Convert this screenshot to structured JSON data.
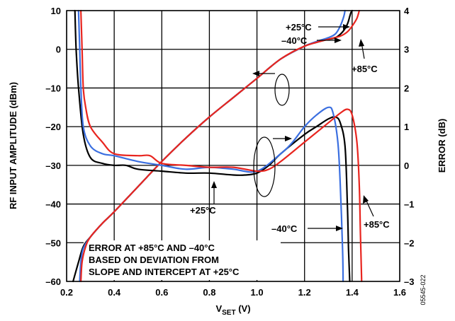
{
  "chart_data": {
    "type": "line",
    "xlabel": {
      "main": "V",
      "sub": "SET",
      "unit": " (V)"
    },
    "ylabel": "RF INPUT AMPLITUDE (dBm)",
    "y2label": "ERROR (dB)",
    "xlim": [
      0.2,
      1.6
    ],
    "ylim": [
      -60,
      10
    ],
    "y2lim": [
      -3,
      4
    ],
    "grid": true,
    "x_ticks": [
      "0.2",
      "0.4",
      "0.6",
      "0.8",
      "1.0",
      "1.2",
      "1.4",
      "1.6"
    ],
    "y_ticks": [
      "10",
      "0",
      "–10",
      "–20",
      "–30",
      "–40",
      "–50",
      "–60"
    ],
    "y2_ticks": [
      "4",
      "3",
      "2",
      "1",
      "0",
      "–1",
      "–2",
      "–3"
    ],
    "series": [
      {
        "name": "+25°C",
        "color": "#000000",
        "role": "amplitude",
        "x": [
          0.227,
          0.25,
          0.27,
          0.3,
          0.35,
          0.4,
          0.5,
          0.6,
          0.7,
          0.8,
          0.9,
          1.0,
          1.1,
          1.2,
          1.25,
          1.3,
          1.33,
          1.36,
          1.38,
          1.39,
          1.395,
          1.4
        ],
        "y": [
          -60,
          -55,
          -51,
          -48.5,
          -45,
          -42,
          -35.5,
          -29,
          -23,
          -17.5,
          -12.5,
          -7.5,
          -2.5,
          0.8,
          1.8,
          2.6,
          3.0,
          4.5,
          6.5,
          8.5,
          9.5,
          10
        ]
      },
      {
        "name": "–40°C",
        "color": "#3b6fe0",
        "role": "amplitude",
        "x": [
          0.255,
          0.26,
          0.27,
          0.3,
          0.35,
          0.4,
          0.5,
          0.6,
          0.7,
          0.8,
          0.9,
          1.0,
          1.1,
          1.2,
          1.25,
          1.3,
          1.33,
          1.35,
          1.365,
          1.37
        ],
        "y": [
          -60,
          -55,
          -51.5,
          -48.5,
          -45,
          -42,
          -35.5,
          -29,
          -23,
          -17.5,
          -12.5,
          -7.5,
          -2.5,
          0.8,
          2.0,
          3.0,
          4.0,
          6.0,
          8.5,
          10
        ]
      },
      {
        "name": "+85°C",
        "color": "#e8251f",
        "role": "amplitude",
        "x": [
          0.26,
          0.265,
          0.28,
          0.3,
          0.35,
          0.4,
          0.5,
          0.6,
          0.7,
          0.8,
          0.9,
          1.0,
          1.1,
          1.2,
          1.3,
          1.35,
          1.38,
          1.4,
          1.42,
          1.43
        ],
        "y": [
          -60,
          -55,
          -51,
          -48.5,
          -45,
          -42,
          -35.5,
          -29,
          -23,
          -17.5,
          -12.5,
          -7.5,
          -2.5,
          0.8,
          2.6,
          3.4,
          4.5,
          6.0,
          8.0,
          10
        ]
      },
      {
        "name": "+25°C",
        "color": "#000000",
        "role": "error",
        "x": [
          0.235,
          0.24,
          0.25,
          0.27,
          0.3,
          0.35,
          0.4,
          0.45,
          0.5,
          0.6,
          0.7,
          0.8,
          0.9,
          0.95,
          1.0,
          1.05,
          1.1,
          1.2,
          1.25,
          1.3,
          1.33,
          1.35,
          1.37,
          1.38,
          1.385,
          1.39
        ],
        "y": [
          4,
          3.0,
          2.0,
          0.8,
          0.2,
          0.05,
          0.0,
          0.0,
          -0.1,
          -0.15,
          -0.2,
          -0.2,
          -0.25,
          -0.25,
          -0.2,
          0.0,
          0.3,
          0.8,
          1.0,
          1.2,
          1.25,
          1.1,
          0.5,
          -1.0,
          -2.2,
          -3
        ]
      },
      {
        "name": "–40°C",
        "color": "#3b6fe0",
        "role": "error",
        "x": [
          0.25,
          0.255,
          0.26,
          0.27,
          0.3,
          0.35,
          0.4,
          0.5,
          0.6,
          0.7,
          0.8,
          0.9,
          1.0,
          1.1,
          1.15,
          1.2,
          1.25,
          1.3,
          1.32,
          1.34,
          1.35,
          1.36,
          1.362
        ],
        "y": [
          4,
          3.0,
          2.0,
          1.0,
          0.5,
          0.3,
          0.25,
          0.1,
          0.0,
          -0.1,
          -0.05,
          -0.1,
          -0.15,
          0.3,
          0.6,
          1.0,
          1.3,
          1.5,
          1.35,
          0.6,
          -0.5,
          -2.2,
          -3
        ]
      },
      {
        "name": "+85°C",
        "color": "#e8251f",
        "role": "error",
        "x": [
          0.26,
          0.265,
          0.27,
          0.28,
          0.3,
          0.35,
          0.4,
          0.5,
          0.55,
          0.6,
          0.7,
          0.8,
          0.9,
          1.0,
          1.05,
          1.1,
          1.2,
          1.3,
          1.35,
          1.38,
          1.4,
          1.42,
          1.43,
          1.435,
          1.44
        ],
        "y": [
          4,
          3.0,
          2.0,
          1.5,
          1.0,
          0.6,
          0.3,
          0.25,
          0.25,
          0.05,
          0.0,
          -0.05,
          -0.05,
          -0.15,
          -0.1,
          0.1,
          0.6,
          1.1,
          1.35,
          1.45,
          1.3,
          0.6,
          -0.5,
          -1.8,
          -3
        ]
      }
    ],
    "annotations": [
      {
        "id": "lbl-25-top",
        "text": "+25°C"
      },
      {
        "id": "lbl-40-top",
        "text": "–40°C"
      },
      {
        "id": "lbl-85-top",
        "text": "+85°C"
      },
      {
        "id": "lbl-25-bottom",
        "text": "+25°C"
      },
      {
        "id": "lbl-40-bottom",
        "text": "–40°C"
      },
      {
        "id": "lbl-85-bottom",
        "text": "+85°C"
      }
    ],
    "note": [
      "ERROR AT +85°C AND –40°C",
      "BASED ON DEVIATION FROM",
      "SLOPE AND INTERCEPT AT +25°C"
    ],
    "figure_id": "05545-022"
  }
}
